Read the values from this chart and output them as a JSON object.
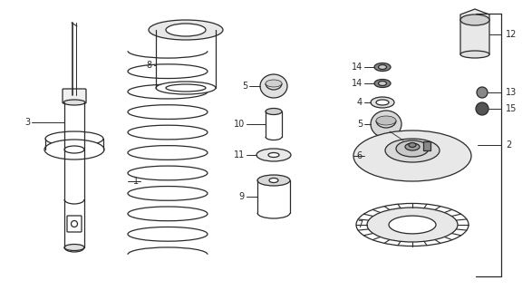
{
  "bg_color": "#ffffff",
  "line_color": "#2a2a2a",
  "fig_width": 5.87,
  "fig_height": 3.2,
  "dpi": 100
}
